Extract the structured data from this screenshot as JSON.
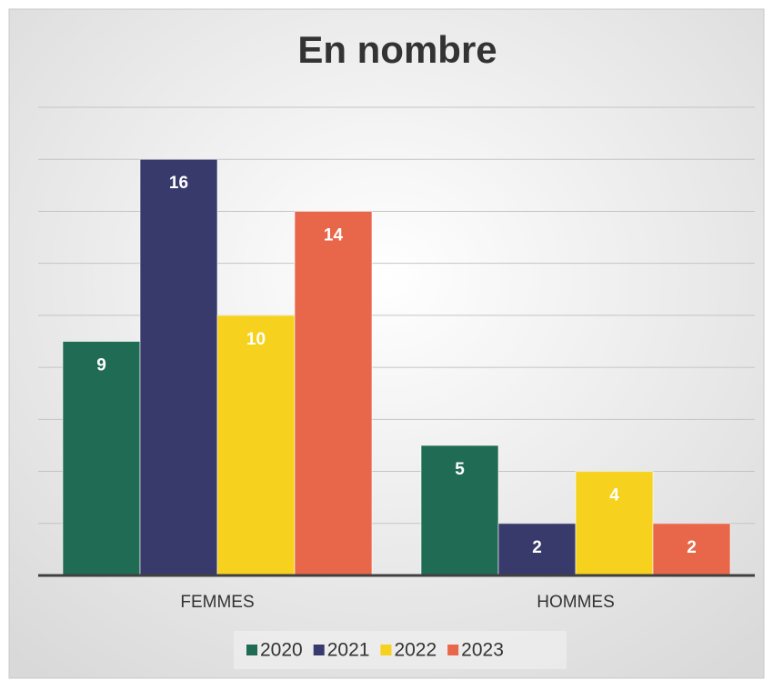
{
  "chart_data": {
    "type": "bar",
    "title": "En nombre",
    "categories": [
      "FEMMES",
      "HOMMES"
    ],
    "series": [
      {
        "name": "2020",
        "color": "#1f6b53",
        "values": [
          9,
          5
        ]
      },
      {
        "name": "2021",
        "color": "#393a6c",
        "values": [
          16,
          2
        ]
      },
      {
        "name": "2022",
        "color": "#f6d21e",
        "values": [
          10,
          4
        ]
      },
      {
        "name": "2023",
        "color": "#e8674a",
        "values": [
          14,
          2
        ]
      }
    ],
    "ylim": [
      0,
      18
    ],
    "yticks": [
      0,
      2,
      4,
      6,
      8,
      10,
      12,
      14,
      16,
      18
    ],
    "grid": true,
    "legend": "bottom"
  }
}
